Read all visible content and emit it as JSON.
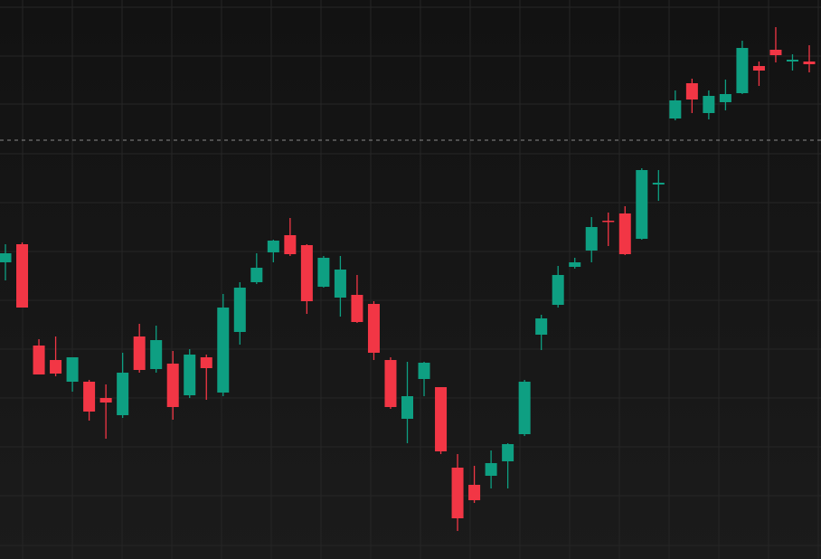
{
  "chart_data": {
    "type": "candlestick",
    "open": [
      328,
      348,
      236,
      220,
      196,
      196,
      178,
      159,
      246,
      210,
      216,
      181,
      223,
      184,
      251,
      306,
      339,
      358,
      347,
      301,
      289,
      292,
      282,
      220,
      155,
      199,
      190,
      101,
      82,
      92,
      108,
      138,
      248,
      281,
      323,
      341,
      374,
      382,
      354,
      414,
      487,
      526,
      493,
      505,
      515,
      545,
      563,
      550,
      550
    ],
    "high": [
      348,
      350,
      243,
      246,
      223,
      198,
      193,
      228,
      260,
      258,
      230,
      232,
      226,
      293,
      306,
      338,
      353,
      377,
      348,
      335,
      335,
      314,
      285,
      223,
      218,
      218,
      190,
      116,
      103,
      120,
      128,
      198,
      270,
      324,
      333,
      378,
      383,
      390,
      432,
      430,
      518,
      531,
      518,
      530,
      573,
      550,
      588,
      558,
      568
    ],
    "low": [
      308,
      278,
      204,
      202,
      185,
      153,
      133,
      156,
      206,
      206,
      154,
      178,
      176,
      180,
      237,
      304,
      328,
      335,
      271,
      300,
      268,
      261,
      220,
      166,
      128,
      180,
      116,
      31,
      62,
      78,
      78,
      136,
      231,
      278,
      321,
      328,
      346,
      336,
      353,
      396,
      485,
      493,
      486,
      496,
      514,
      523,
      549,
      540,
      538
    ],
    "close": [
      338,
      278,
      204,
      205,
      223,
      163,
      173,
      206,
      209,
      242,
      168,
      226,
      211,
      278,
      300,
      322,
      352,
      337,
      285,
      333,
      320,
      262,
      228,
      168,
      180,
      217,
      119,
      45,
      65,
      106,
      127,
      196,
      266,
      314,
      328,
      367,
      373,
      337,
      430,
      416,
      507,
      508,
      512,
      514,
      565,
      540,
      557,
      552,
      547
    ],
    "up_color": "#0e9f82",
    "down_color": "#f23645",
    "ylim": [
      0,
      618
    ],
    "yticks": [
      610,
      556,
      503,
      448,
      394,
      340,
      286,
      232,
      178,
      124,
      70,
      15
    ],
    "grid": true,
    "ref_line": 463
  }
}
